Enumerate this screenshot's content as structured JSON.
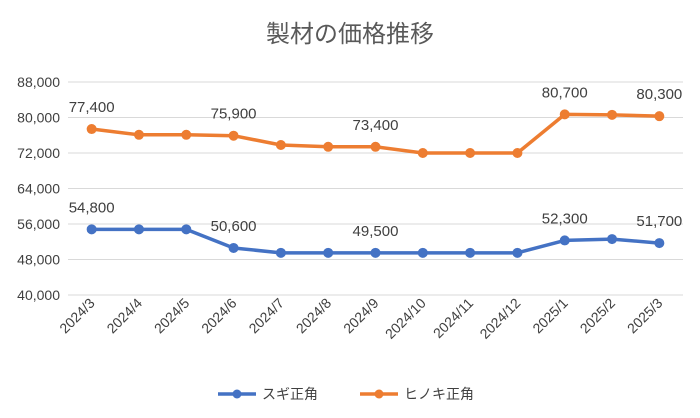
{
  "chart_data": {
    "type": "line",
    "title": "製材の価格推移",
    "xlabel": "",
    "ylabel": "",
    "ylim": [
      40000,
      88000
    ],
    "yticks": [
      40000,
      48000,
      56000,
      64000,
      72000,
      80000,
      88000
    ],
    "ytick_labels": [
      "40,000",
      "48,000",
      "56,000",
      "64,000",
      "72,000",
      "80,000",
      "88,000"
    ],
    "grid": true,
    "legend_position": "bottom",
    "categories": [
      "2024/3",
      "2024/4",
      "2024/5",
      "2024/6",
      "2024/7",
      "2024/8",
      "2024/9",
      "2024/10",
      "2024/11",
      "2024/12",
      "2025/1",
      "2025/2",
      "2025/3"
    ],
    "series": [
      {
        "name": "スギ正角",
        "color": "#4472C4",
        "values": [
          54800,
          54800,
          54800,
          50600,
          49500,
          49500,
          49500,
          49500,
          49500,
          49500,
          52300,
          52600,
          51700
        ],
        "labels": {
          "0": "54,800",
          "3": "50,600",
          "6": "49,500",
          "10": "52,300",
          "12": "51,700"
        }
      },
      {
        "name": "ヒノキ正角",
        "color": "#ED7D31",
        "values": [
          77400,
          76100,
          76100,
          75900,
          73800,
          73400,
          73400,
          72000,
          72000,
          72000,
          80700,
          80600,
          80300
        ],
        "labels": {
          "0": "77,400",
          "3": "75,900",
          "6": "73,400",
          "10": "80,700",
          "12": "80,300"
        }
      }
    ]
  }
}
